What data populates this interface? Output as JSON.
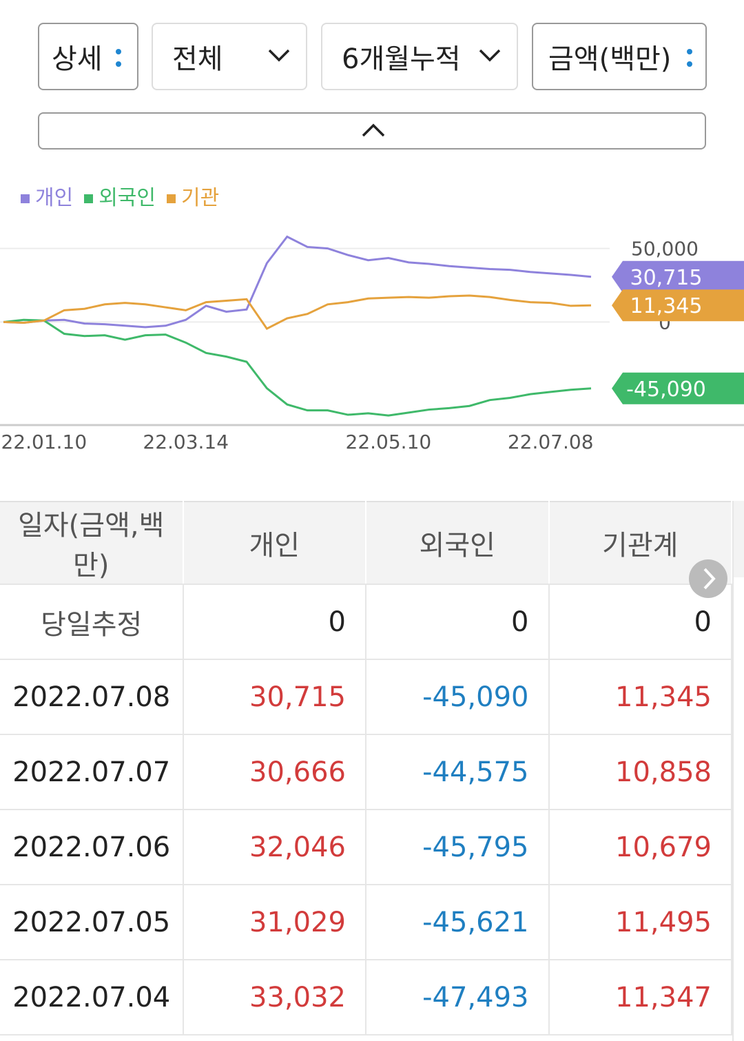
{
  "controls": {
    "detail": "상세",
    "scope": "전체",
    "period": "6개월누적",
    "unit": "금액(백만)"
  },
  "chart_data": {
    "type": "line",
    "categories": [
      null,
      null,
      "22.01.10",
      null,
      null,
      null,
      null,
      null,
      null,
      "22.03.14",
      null,
      null,
      null,
      null,
      null,
      null,
      null,
      null,
      null,
      "22.05.10",
      null,
      null,
      null,
      null,
      null,
      null,
      null,
      "22.07.08",
      null,
      null
    ],
    "series": [
      {
        "name": "개인",
        "color": "#8e82dc",
        "values": [
          0,
          -500,
          1000,
          1500,
          -1000,
          -1500,
          -2500,
          -3500,
          -2500,
          1500,
          11000,
          7000,
          8500,
          40000,
          58000,
          51000,
          50000,
          45500,
          42000,
          43500,
          40500,
          39500,
          38000,
          37000,
          36000,
          35500,
          34000,
          33000,
          32000,
          30715
        ],
        "value_labels": [
          null,
          null,
          null,
          null,
          null,
          null,
          null,
          null,
          null,
          null,
          null,
          null,
          null,
          null,
          null,
          null,
          null,
          null,
          null,
          null,
          null,
          null,
          null,
          null,
          null,
          null,
          null,
          null,
          null,
          "30,715"
        ]
      },
      {
        "name": "외국인",
        "color": "#3fb96a",
        "values": [
          0,
          1500,
          1000,
          -8000,
          -9500,
          -9000,
          -12000,
          -9000,
          -8500,
          -14000,
          -21000,
          -23500,
          -27000,
          -45000,
          -56000,
          -60000,
          -60000,
          -63000,
          -62000,
          -63500,
          -61500,
          -59500,
          -58500,
          -57000,
          -53000,
          -51500,
          -49000,
          -47500,
          -46000,
          -45090
        ],
        "value_labels": [
          null,
          null,
          null,
          null,
          null,
          null,
          null,
          null,
          null,
          null,
          null,
          null,
          null,
          null,
          null,
          null,
          null,
          null,
          null,
          null,
          null,
          null,
          null,
          null,
          null,
          null,
          null,
          null,
          null,
          "-45,090"
        ]
      },
      {
        "name": "기관",
        "color": "#e5a23d",
        "values": [
          0,
          -500,
          1000,
          8000,
          9000,
          12000,
          13000,
          12000,
          10000,
          8000,
          13500,
          14500,
          15500,
          -4500,
          2500,
          5500,
          12000,
          13500,
          16000,
          16500,
          17000,
          16500,
          17500,
          18000,
          17000,
          15000,
          13500,
          13000,
          11000,
          11345
        ],
        "value_labels": [
          null,
          null,
          null,
          null,
          null,
          null,
          null,
          null,
          null,
          null,
          null,
          null,
          null,
          null,
          null,
          null,
          null,
          null,
          null,
          null,
          null,
          null,
          null,
          null,
          null,
          null,
          null,
          null,
          null,
          "11,345"
        ]
      }
    ],
    "ylim": [
      -70000,
      69000
    ],
    "yticks": [
      0,
      {
        "value": 50000,
        "label": "50,000"
      }
    ],
    "grid": true
  },
  "table": {
    "header": [
      "일자(금액,백만)",
      "개인",
      "외국인",
      "기관계"
    ],
    "rows": [
      [
        "당일추정",
        "0",
        "0",
        "0"
      ],
      [
        "2022.07.08",
        "30,715",
        "-45,090",
        "11,345"
      ],
      [
        "2022.07.07",
        "30,666",
        "-44,575",
        "10,858"
      ],
      [
        "2022.07.06",
        "32,046",
        "-45,795",
        "10,679"
      ],
      [
        "2022.07.05",
        "31,029",
        "-45,621",
        "11,495"
      ],
      [
        "2022.07.04",
        "33,032",
        "-47,493",
        "11,347"
      ]
    ]
  }
}
